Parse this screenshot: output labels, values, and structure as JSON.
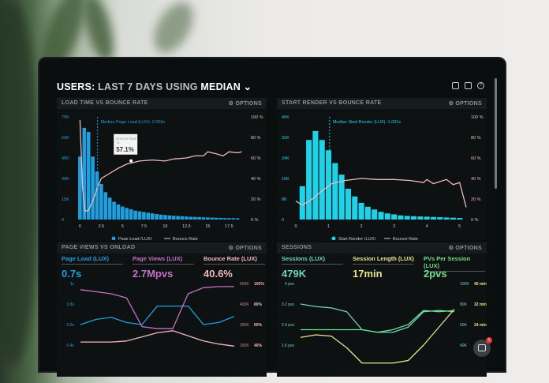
{
  "header": {
    "prefix": "USERS:",
    "range": "LAST 7 DAYS",
    "using": "USING",
    "stat": "MEDIAN",
    "chevron": "chevron-down-icon"
  },
  "toolbar_icons": [
    "monitor-icon",
    "image-icon",
    "help-icon"
  ],
  "options_label": "⚙ OPTIONS",
  "colors": {
    "blue": "#1e9fe0",
    "cyan": "#1ed2e8",
    "pink": "#f0b8c0",
    "purple": "#c472c8",
    "teal": "#6cd7b8",
    "yellow": "#e8e58a",
    "green": "#6fe08a"
  },
  "chart_data": [
    {
      "type": "bar",
      "title": "LOAD TIME VS BOUNCE RATE",
      "annotation": "Median Page Load (LUX): 2.056s",
      "median": 2.056,
      "tooltip": {
        "label": "Bounce Rate",
        "sub": "7s",
        "value": "57.1%"
      },
      "x_ticks": [
        "0",
        "2.5",
        "5",
        "7.5",
        "10",
        "12.5",
        "15",
        "17.5"
      ],
      "xlim": [
        -0.5,
        19.5
      ],
      "y_ticks": [
        "0",
        "15K",
        "30K",
        "45K",
        "60K",
        "75K"
      ],
      "ylim": [
        0,
        75
      ],
      "y2_ticks": [
        "0 %",
        "20 %",
        "40 %",
        "60 %",
        "80 %",
        "100 %"
      ],
      "y2lim": [
        0,
        100
      ],
      "bar_x_start": 0,
      "bar_x_step": 0.5,
      "series": [
        {
          "name": "Page Load (LUX)",
          "values": [
            46,
            67,
            64,
            46,
            35,
            26,
            20,
            16,
            13,
            11,
            9.5,
            8.5,
            7.5,
            6.5,
            6,
            5.5,
            5,
            4.5,
            4,
            3.6,
            3.3,
            3,
            2.8,
            2.6,
            2.4,
            2.2,
            2,
            1.9,
            1.8,
            1.6,
            1.5,
            1.4,
            1.3,
            1.2,
            1.1,
            1,
            1,
            0.9
          ]
        },
        {
          "name": "Bounce Rate",
          "x": [
            0,
            0.3,
            0.6,
            1,
            1.5,
            2,
            2.5,
            3.5,
            4.5,
            5.5,
            7,
            8.5,
            10,
            11,
            12.5,
            13.5,
            14.5,
            15,
            16,
            16.8,
            17.5,
            18.5,
            19
          ],
          "values": [
            97,
            30,
            8,
            9,
            18,
            30,
            40,
            45,
            50,
            54,
            57,
            58,
            57,
            59,
            60,
            62,
            62,
            66,
            64,
            62,
            66,
            65,
            66
          ]
        }
      ]
    },
    {
      "type": "bar",
      "title": "START RENDER VS BOUNCE RATE",
      "annotation": "Median Start Render (LUX): 1.031s",
      "median": 1.031,
      "x_ticks": [
        "0",
        "1",
        "2",
        "3",
        "4",
        "5"
      ],
      "xlim": [
        0,
        5.2
      ],
      "y_ticks": [
        "0",
        "8K",
        "16K",
        "24K",
        "32K",
        "40K"
      ],
      "ylim": [
        0,
        40
      ],
      "y2_ticks": [
        "0 %",
        "20 %",
        "40 %",
        "60 %",
        "80 %",
        "100 %"
      ],
      "y2lim": [
        0,
        100
      ],
      "bar_x_start": 0.2,
      "bar_x_step": 0.2,
      "series": [
        {
          "name": "Start Render (LUX)",
          "values": [
            13,
            31,
            34.5,
            31,
            27,
            22,
            17.5,
            12,
            9,
            6.5,
            5,
            3.9,
            3,
            2.4,
            2,
            1.6,
            1.4,
            1.3,
            1.2,
            1.1,
            1,
            0.9,
            0.8,
            0.7,
            0.6
          ]
        },
        {
          "name": "Bounce Rate",
          "x": [
            0,
            0.2,
            0.5,
            0.8,
            1.1,
            1.5,
            2,
            2.5,
            3,
            3.5,
            3.9,
            4,
            4.2,
            4.6,
            4.8,
            5,
            5.2
          ],
          "values": [
            18,
            14,
            20,
            28,
            35,
            38,
            40,
            39,
            39,
            38,
            36,
            39,
            35,
            39,
            34,
            36,
            12
          ]
        }
      ]
    },
    {
      "type": "line",
      "title": "PAGE VIEWS VS ONLOAD",
      "metrics": [
        {
          "label": "Page Load (LUX)",
          "value": "0.7s"
        },
        {
          "label": "Page Views (LUX)",
          "value": "2.7Mpvs"
        },
        {
          "label": "Bounce Rate (LUX)",
          "value": "40.6%"
        }
      ],
      "y_ticks": [
        "0.4s",
        "0.6s",
        "0.8s",
        "1s"
      ],
      "ylim": [
        0.4,
        1
      ],
      "y2_ticks": [
        "200K",
        "300K",
        "400K",
        "500K"
      ],
      "y2lim": [
        200,
        500
      ],
      "y3_ticks": [
        "40%",
        "60%",
        "80%",
        "100%"
      ],
      "series": [
        {
          "values": [
            0.6,
            0.65,
            0.67,
            0.62,
            0.6,
            0.78,
            0.78,
            0.78,
            0.6,
            0.62,
            0.68
          ],
          "axis": 1
        },
        {
          "values": [
            470,
            460,
            450,
            430,
            290,
            280,
            280,
            450,
            480,
            485,
            485
          ],
          "axis": 2
        },
        {
          "values": [
            215,
            215,
            215,
            220,
            240,
            260,
            270,
            245,
            220,
            205,
            195
          ],
          "axis": 2
        }
      ]
    },
    {
      "type": "line",
      "title": "SESSIONS",
      "metrics": [
        {
          "label": "Sessions (LUX)",
          "value": "479K"
        },
        {
          "label": "Session Length (LUX)",
          "value": "17min"
        },
        {
          "label": "PVs Per Session (LUX)",
          "value": "2pvs"
        }
      ],
      "y_ticks": [
        "1.6 pvs",
        "2.4 pvs",
        "3.2 pvs",
        "4 pvs"
      ],
      "ylim": [
        1.6,
        4
      ],
      "y2_ticks": [
        "40K",
        "60K",
        "80K",
        "100K"
      ],
      "y2lim": [
        40,
        100
      ],
      "y3_ticks": [
        "24 min",
        "32 min",
        "40 min"
      ],
      "series": [
        {
          "values": [
            3.2,
            3.1,
            3.05,
            2.9,
            2.2,
            2.1,
            2.1,
            2.3,
            2.9,
            2.95,
            2.9
          ],
          "axis": 1
        },
        {
          "values": [
            1.9,
            2.0,
            1.95,
            1.5,
            0.9,
            0.9,
            0.9,
            1.0,
            1.6,
            2.3,
            3.0
          ],
          "axis": 1
        },
        {
          "values": [
            2.2,
            2.2,
            2.2,
            2.2,
            2.2,
            2.1,
            2.2,
            2.4,
            2.95,
            2.9,
            2.95
          ],
          "axis": 1
        }
      ]
    }
  ],
  "chat": {
    "badge": "1"
  }
}
